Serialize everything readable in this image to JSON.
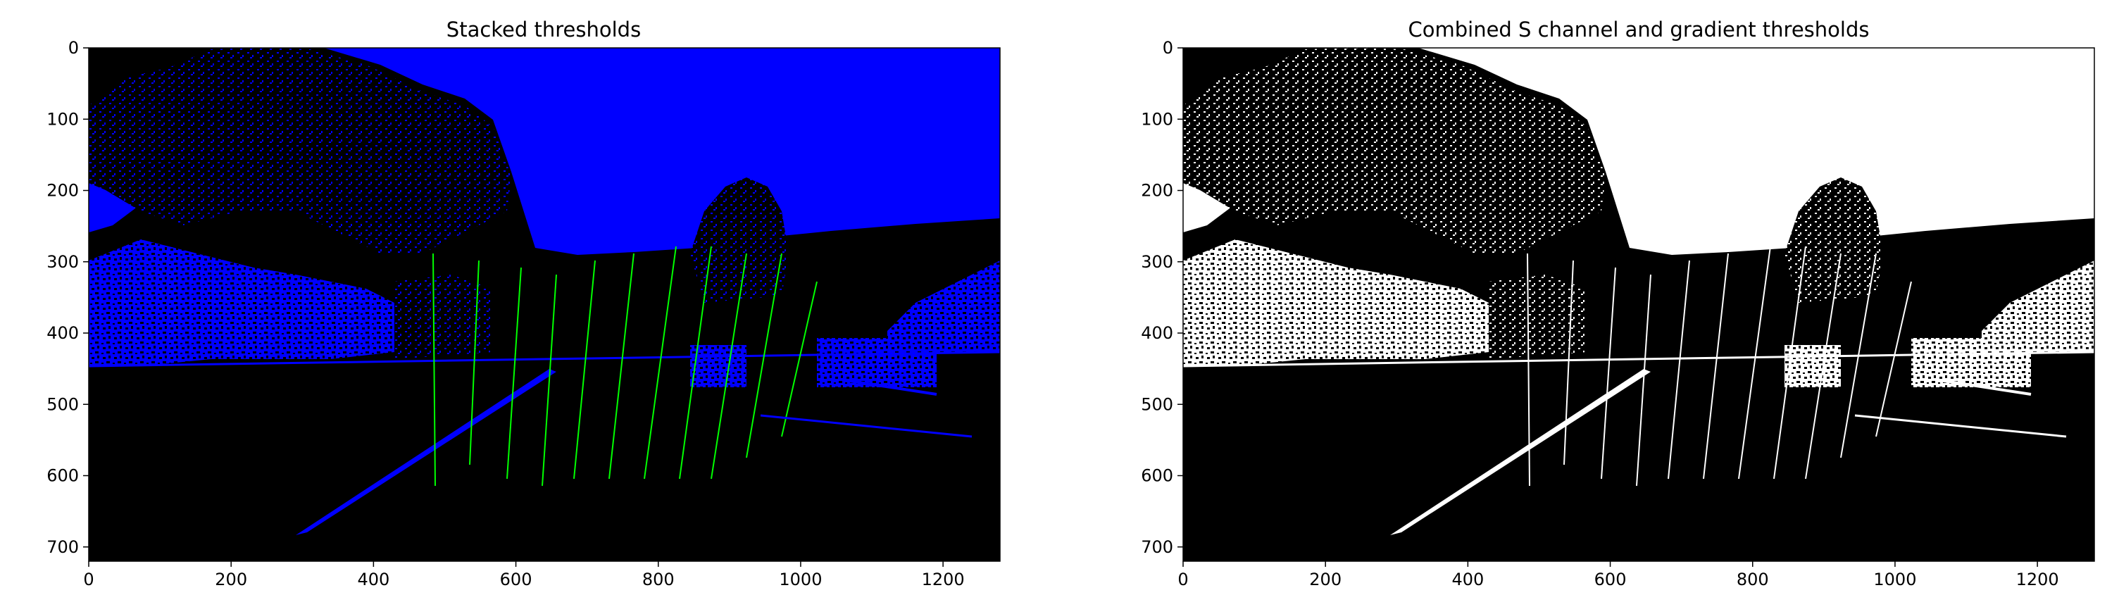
{
  "chart_data": [
    {
      "type": "image",
      "title": "Stacked thresholds",
      "xlim": [
        0,
        1280
      ],
      "ylim": [
        720,
        0
      ],
      "xticks": [
        0,
        200,
        400,
        600,
        800,
        1000,
        1200
      ],
      "yticks": [
        0,
        100,
        200,
        300,
        400,
        500,
        600,
        700
      ],
      "image_colors": {
        "background": "#000000",
        "s_channel": "#0000ff",
        "gradient": "#00ff00"
      }
    },
    {
      "type": "image",
      "title": "Combined S channel and gradient thresholds",
      "xlim": [
        0,
        1280
      ],
      "ylim": [
        720,
        0
      ],
      "xticks": [
        0,
        200,
        400,
        600,
        800,
        1000,
        1200
      ],
      "yticks": [
        0,
        100,
        200,
        300,
        400,
        500,
        600,
        700
      ],
      "image_colors": {
        "background": "#000000",
        "binary": "#ffffff"
      }
    }
  ]
}
